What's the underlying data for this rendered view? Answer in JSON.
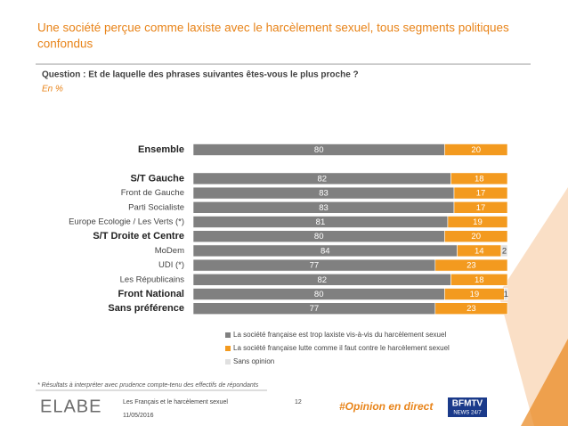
{
  "header": {
    "title_line1": "Une société perçue comme laxiste avec le harcèlement sexuel, tous segments politiques",
    "title_line2": "confondus",
    "question": "Question : Et de laquelle des phrases suivantes êtes-vous le plus proche ?",
    "unit": "En %"
  },
  "chart_data": {
    "type": "stacked-bar-horizontal",
    "categories": [
      "Ensemble",
      null,
      "S/T Gauche",
      "Front de Gauche",
      "Parti Socialiste",
      "Europe Ecologie / Les Verts (*)",
      "S/T Droite et Centre",
      "MoDem",
      "UDI (*)",
      "Les Républicains",
      "Front National",
      "Sans préférence"
    ],
    "series": [
      {
        "name": "La société française est trop laxiste vis-à-vis du harcèlement sexuel",
        "color": "#808080",
        "values": [
          80,
          null,
          82,
          83,
          83,
          81,
          80,
          84,
          77,
          82,
          80,
          77
        ]
      },
      {
        "name": "La société française lutte comme il faut contre le harcèlement sexuel",
        "color": "#f39a1f",
        "values": [
          20,
          null,
          18,
          17,
          17,
          19,
          20,
          14,
          23,
          18,
          19,
          23
        ]
      },
      {
        "name": "Sans opinion",
        "color": "#e0e0e0",
        "values": [
          0,
          null,
          0,
          0,
          0,
          0,
          0,
          2,
          0,
          0,
          1,
          0
        ]
      }
    ],
    "xlim": [
      0,
      100
    ]
  },
  "footer": {
    "note": "* Résultats à interpréter avec prudence compte-tenu des effectifs de répondants",
    "logo": "ELABE",
    "study": "Les Français et le harcèlement sexuel",
    "date": "11/05/2016",
    "page": "12",
    "hashtag": "#Opinion en direct",
    "tv": "BFMTV",
    "tv_sub": "NEWS 24/7"
  }
}
